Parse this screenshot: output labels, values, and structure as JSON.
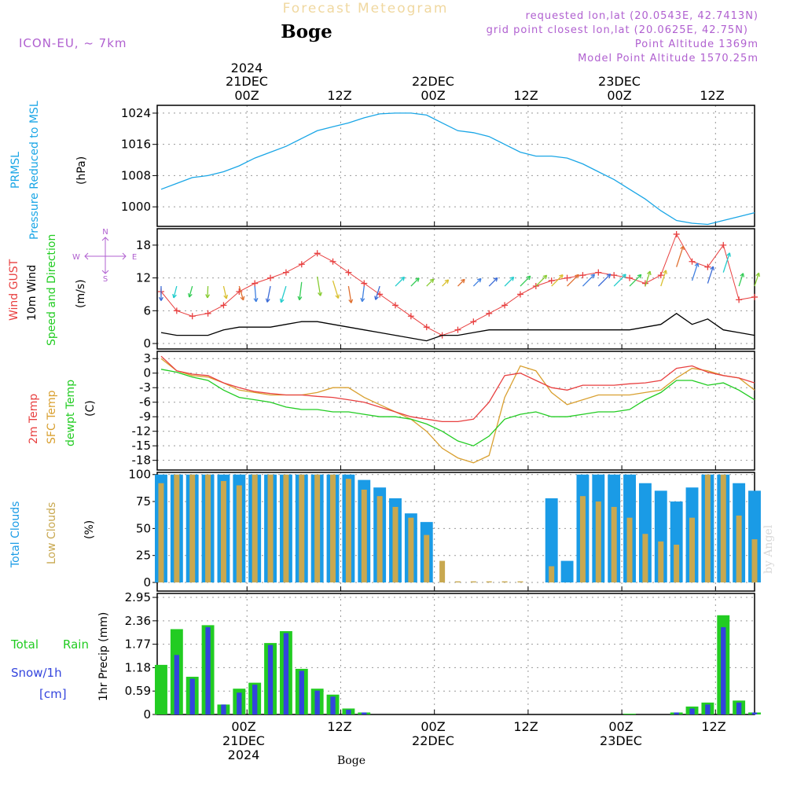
{
  "header": {
    "app_title": "Forecast Meteogram",
    "location": "Boge",
    "model": "ICON-EU, ~ 7km",
    "requested": "requested lon,lat (20.0543E, 42.7413N)",
    "grid_point": "grid point closest lon,lat (20.0625E, 42.75N)",
    "point_alt": "Point Altitude 1369m",
    "model_alt": "Model Point Altitude 1570.25m",
    "footer": "Boge",
    "watermark": "by Angel"
  },
  "colors": {
    "pressure": "#1aa6e6",
    "gust": "#e84040",
    "wind": "#000000",
    "temp2m": "#e84040",
    "sfc": "#d9a030",
    "dewpt": "#22cc22",
    "total_cloud": "#1a9be6",
    "low_cloud": "#c8a850",
    "rain": "#22cc22",
    "snow": "#3344dd",
    "meta": "#b060d0"
  },
  "time_axis": {
    "top_ticks": [
      {
        "time": "00Z",
        "date": "21DEC",
        "year": "2024"
      },
      {
        "time": "12Z",
        "date": "",
        "year": ""
      },
      {
        "time": "00Z",
        "date": "22DEC",
        "year": ""
      },
      {
        "time": "12Z",
        "date": "",
        "year": ""
      },
      {
        "time": "00Z",
        "date": "23DEC",
        "year": ""
      },
      {
        "time": "12Z",
        "date": "",
        "year": ""
      }
    ],
    "tick_hours": [
      0,
      12,
      24,
      36,
      48,
      60
    ],
    "range_hours": [
      -11.5,
      65
    ]
  },
  "panels": {
    "pressure": {
      "label1": "PRMSL",
      "label2": "Pressure Reduced to MSL",
      "unit": "(hPa)",
      "ticks": [
        "1024",
        "1016",
        "1008",
        "1000"
      ]
    },
    "wind": {
      "label_gust": "Wind GUST",
      "label_wind": "10m Wind",
      "label_speed": "Speed and Direction",
      "unit": "(m/s)",
      "ticks": [
        "18",
        "12",
        "6",
        "0"
      ],
      "compass_n": "N",
      "compass_s": "S",
      "compass_w": "W",
      "compass_e": "E"
    },
    "temp": {
      "label_2m": "2m Temp",
      "label_sfc": "SFC Temp",
      "label_dew": "dewpt Temp",
      "unit": "(C)",
      "ticks": [
        "3",
        "0",
        "-3",
        "-6",
        "-9",
        "-12",
        "-15",
        "-18"
      ]
    },
    "clouds": {
      "label_total": "Total Clouds",
      "label_low": "Low Clouds",
      "unit": "(%)",
      "ticks": [
        "100",
        "75",
        "50",
        "25",
        "0"
      ]
    },
    "precip": {
      "label_total": "Total",
      "label_rain": "Rain",
      "label_snow": "Snow/1h",
      "label_cm": "[cm]",
      "label_precip": "1hr Precip (mm)",
      "ticks": [
        "2.95",
        "2.36",
        "1.77",
        "1.18",
        "0.59",
        "0"
      ]
    }
  },
  "chart_data": [
    {
      "type": "line",
      "title": "PRMSL",
      "ylabel": "(hPa)",
      "ylim": [
        995,
        1026
      ],
      "x": [
        -11,
        -9,
        -7,
        -5,
        -3,
        -1,
        1,
        3,
        5,
        7,
        9,
        11,
        13,
        15,
        17,
        19,
        21,
        23,
        25,
        27,
        29,
        31,
        33,
        35,
        37,
        39,
        41,
        43,
        45,
        47,
        49,
        51,
        53,
        55,
        57,
        59,
        61,
        63,
        65
      ],
      "series": [
        {
          "name": "PRMSL",
          "values": [
            1004.5,
            1006,
            1007.5,
            1008,
            1009,
            1010.5,
            1012.5,
            1014,
            1015.5,
            1017.5,
            1019.5,
            1020.5,
            1021.5,
            1022.8,
            1023.8,
            1024,
            1024,
            1023.5,
            1021.5,
            1019.5,
            1019,
            1018,
            1016,
            1014,
            1013,
            1013,
            1012.5,
            1011,
            1009,
            1007,
            1004.5,
            1002,
            999,
            996.5,
            995.8,
            995.5,
            996.5,
            997.5,
            998.5
          ]
        }
      ]
    },
    {
      "type": "line",
      "title": "Wind GUST / 10m Wind",
      "ylabel": "(m/s)",
      "ylim": [
        0,
        21
      ],
      "x": [
        -11,
        -9,
        -7,
        -5,
        -3,
        -1,
        1,
        3,
        5,
        7,
        9,
        11,
        13,
        15,
        17,
        19,
        21,
        23,
        25,
        27,
        29,
        31,
        33,
        35,
        37,
        39,
        41,
        43,
        45,
        47,
        49,
        51,
        53,
        55,
        57,
        59,
        61,
        63,
        65
      ],
      "series": [
        {
          "name": "Wind GUST",
          "values": [
            9.5,
            6,
            5,
            5.5,
            7,
            9.5,
            11,
            12,
            13,
            14.5,
            16.5,
            15,
            13,
            11,
            9,
            7,
            5,
            3,
            1.5,
            2.5,
            4,
            5.5,
            7,
            9,
            10.5,
            11.5,
            12,
            12.5,
            13,
            12.5,
            12,
            11,
            12.5,
            20,
            15,
            14,
            18,
            8,
            8.5
          ]
        },
        {
          "name": "10m Wind",
          "values": [
            2,
            1.5,
            1.5,
            1.5,
            2.5,
            3,
            3,
            3,
            3.5,
            4,
            4,
            3.5,
            3,
            2.5,
            2,
            1.5,
            1,
            0.5,
            1.5,
            1.5,
            2,
            2.5,
            2.5,
            2.5,
            2.5,
            2.5,
            2.5,
            2.5,
            2.5,
            2.5,
            2.5,
            3,
            3.5,
            5.5,
            3.5,
            4.5,
            2.5,
            2,
            1.5
          ]
        }
      ]
    },
    {
      "type": "line",
      "title": "2m Temp / SFC Temp / dewpt Temp",
      "ylabel": "(C)",
      "ylim": [
        -20,
        4
      ],
      "x": [
        -11,
        -9,
        -7,
        -5,
        -3,
        -1,
        1,
        3,
        5,
        7,
        9,
        11,
        13,
        15,
        17,
        19,
        21,
        23,
        25,
        27,
        29,
        31,
        33,
        35,
        37,
        39,
        41,
        43,
        45,
        47,
        49,
        51,
        53,
        55,
        57,
        59,
        61,
        63,
        65
      ],
      "series": [
        {
          "name": "2m Temp",
          "values": [
            3.5,
            0.5,
            -0.2,
            -0.5,
            -2,
            -3,
            -3.8,
            -4.2,
            -4.5,
            -4.5,
            -4.8,
            -5,
            -5.5,
            -6,
            -7,
            -8,
            -9,
            -9.5,
            -10,
            -10,
            -9.5,
            -6,
            -0.5,
            0,
            -1.5,
            -3,
            -3.5,
            -2.5,
            -2.5,
            -2.5,
            -2.2,
            -2,
            -1.5,
            1,
            1.5,
            0.2,
            -0.5,
            -1,
            -2
          ]
        },
        {
          "name": "SFC Temp",
          "values": [
            3,
            0.5,
            -0.5,
            -0.8,
            -2,
            -3.5,
            -4,
            -4.5,
            -4.5,
            -4.5,
            -4,
            -3,
            -3,
            -5,
            -6.5,
            -8,
            -9.5,
            -12,
            -15.5,
            -17.5,
            -18.5,
            -17,
            -5,
            1.5,
            0.5,
            -4,
            -6.5,
            -5.5,
            -4.5,
            -4.5,
            -4.5,
            -4,
            -3.5,
            -1,
            1,
            0.5,
            -0.5,
            -1,
            -3.5
          ]
        },
        {
          "name": "dewpt Temp",
          "values": [
            0.8,
            0.2,
            -0.8,
            -1.5,
            -3.5,
            -5,
            -5.5,
            -6,
            -7,
            -7.5,
            -7.5,
            -8,
            -8,
            -8.5,
            -9,
            -9,
            -9.5,
            -10.5,
            -12,
            -14,
            -15,
            -13,
            -9.5,
            -8.5,
            -8,
            -9,
            -9,
            -8.5,
            -8,
            -8,
            -7.5,
            -5.5,
            -4,
            -1.5,
            -1.5,
            -2.5,
            -2,
            -3.5,
            -5.5
          ]
        }
      ]
    },
    {
      "type": "bar",
      "title": "Total Clouds / Low Clouds",
      "ylabel": "(%)",
      "ylim": [
        0,
        100
      ],
      "x": [
        -11,
        -9,
        -7,
        -5,
        -3,
        -1,
        1,
        3,
        5,
        7,
        9,
        11,
        13,
        15,
        17,
        19,
        21,
        23,
        25,
        27,
        29,
        31,
        33,
        35,
        37,
        39,
        41,
        43,
        45,
        47,
        49,
        51,
        53,
        55,
        57,
        59,
        61,
        63,
        65
      ],
      "series": [
        {
          "name": "Total Clouds",
          "values": [
            100,
            100,
            100,
            100,
            100,
            100,
            100,
            100,
            100,
            100,
            100,
            100,
            100,
            95,
            88,
            78,
            64,
            56,
            0,
            0,
            0,
            0,
            0,
            0,
            0,
            78,
            20,
            100,
            100,
            100,
            100,
            92,
            85,
            75,
            88,
            100,
            100,
            92,
            85
          ]
        },
        {
          "name": "Low Clouds",
          "values": [
            92,
            100,
            100,
            100,
            94,
            90,
            100,
            100,
            100,
            100,
            100,
            100,
            96,
            86,
            80,
            70,
            60,
            44,
            20,
            1,
            1,
            1,
            1,
            1,
            0,
            15,
            0,
            80,
            75,
            70,
            60,
            45,
            38,
            35,
            60,
            100,
            100,
            62,
            40
          ]
        }
      ]
    },
    {
      "type": "bar",
      "title": "1hr Precip (mm)",
      "ylabel": "1hr Precip (mm)",
      "ylim": [
        0,
        2.95
      ],
      "x": [
        -11,
        -9,
        -7,
        -5,
        -3,
        -1,
        1,
        3,
        5,
        7,
        9,
        11,
        13,
        15,
        17,
        19,
        21,
        23,
        25,
        27,
        29,
        31,
        33,
        35,
        37,
        39,
        41,
        43,
        45,
        47,
        49,
        51,
        53,
        55,
        57,
        59,
        61,
        63,
        65
      ],
      "series": [
        {
          "name": "Total Rain",
          "values": [
            1.25,
            2.15,
            0.95,
            2.25,
            0.25,
            0.65,
            0.8,
            1.8,
            2.1,
            1.15,
            0.65,
            0.5,
            0.15,
            0.05,
            0,
            0,
            0,
            0,
            0,
            0,
            0,
            0,
            0,
            0,
            0,
            0,
            0,
            0,
            0,
            0,
            0.02,
            0,
            0,
            0.05,
            0.2,
            0.3,
            2.5,
            0.35,
            0.05
          ]
        },
        {
          "name": "Snow/1h",
          "values": [
            0,
            1.5,
            0.9,
            2.2,
            0.25,
            0.55,
            0.75,
            1.75,
            2.05,
            1.1,
            0.6,
            0.45,
            0.12,
            0.05,
            0,
            0,
            0,
            0,
            0,
            0,
            0,
            0,
            0,
            0,
            0,
            0,
            0,
            0,
            0,
            0,
            0,
            0,
            0,
            0.05,
            0.15,
            0.25,
            2.2,
            0.3,
            0.05
          ]
        }
      ]
    }
  ]
}
